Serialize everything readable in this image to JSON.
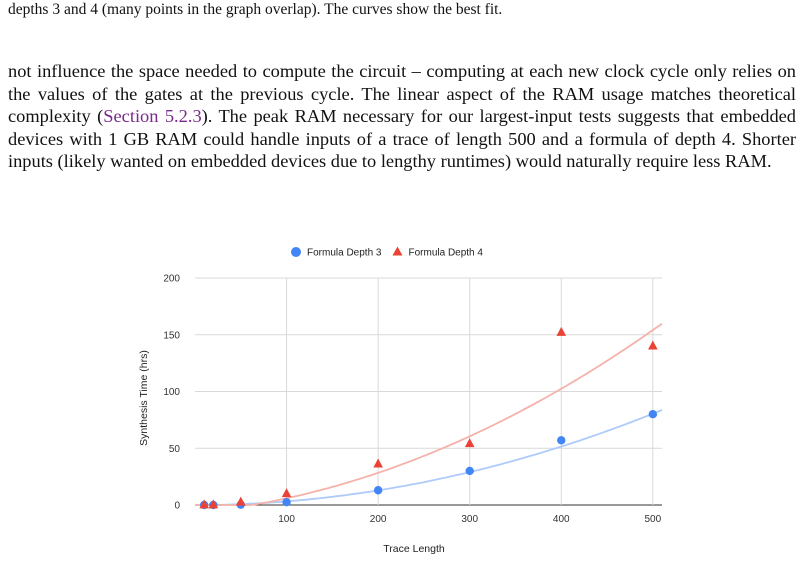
{
  "caption_tail": "depths 3 and 4 (many points in the graph overlap). The curves show the best fit.",
  "paragraph": {
    "before_link": "not influence the space needed to compute the circuit – computing at each new clock cycle only relies on the values of the gates at the previous cycle. The linear aspect of the RAM usage matches theoretical complexity (",
    "link_text": "Section 5.2.3",
    "after_link": "). The peak RAM necessary for our largest-input tests suggests that embedded devices with 1 GB RAM could handle inputs of a trace of length 500 and a formula of depth 4. Shorter inputs (likely wanted on embedded devices due to lengthy runtimes) would naturally require less RAM."
  },
  "chart_data": {
    "type": "scatter",
    "xlabel": "Trace Length",
    "ylabel": "Synthesis Time (hrs)",
    "xlim": [
      0,
      510
    ],
    "ylim": [
      0,
      200
    ],
    "xticks": [
      100,
      200,
      300,
      400,
      500
    ],
    "yticks": [
      0,
      50,
      100,
      150,
      200
    ],
    "grid": true,
    "legend_position": "top",
    "series": [
      {
        "name": "Formula Depth 3",
        "marker": "circle",
        "color": "#4285f4",
        "fit_color": "#aecbfa",
        "x": [
          10,
          20,
          50,
          100,
          200,
          300,
          400,
          500
        ],
        "y": [
          0,
          0,
          0.3,
          2.5,
          13,
          30,
          57,
          80
        ],
        "fit_coeffs": [
          0.0003205,
          0.0008,
          -0.1
        ]
      },
      {
        "name": "Formula Depth 4",
        "marker": "triangle",
        "color": "#ea4335",
        "fit_color": "#f4b2aa",
        "x": [
          10,
          20,
          50,
          100,
          200,
          300,
          400,
          500
        ],
        "y": [
          0,
          0,
          2.5,
          10,
          36,
          54,
          152,
          140
        ],
        "fit_coeffs": [
          0.0004867,
          0.0784,
          -6.8
        ]
      }
    ]
  }
}
